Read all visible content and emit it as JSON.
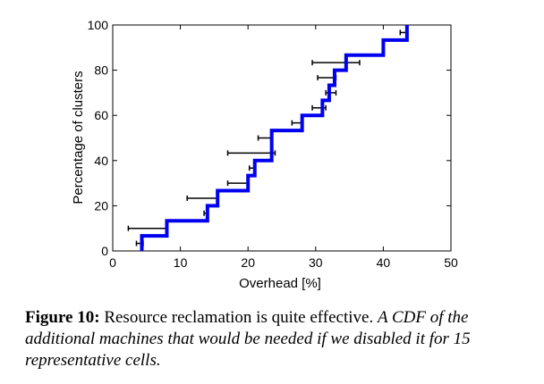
{
  "chart_data": {
    "type": "line",
    "subtype": "step-cdf-with-error-bars",
    "title": "",
    "xlabel": "Overhead [%]",
    "ylabel": "Percentage of clusters",
    "xlim": [
      0,
      50
    ],
    "ylim": [
      0,
      100
    ],
    "xticks": [
      0,
      10,
      20,
      30,
      40,
      50
    ],
    "yticks": [
      0,
      20,
      40,
      60,
      80,
      100
    ],
    "grid": false,
    "series": [
      {
        "name": "CDF",
        "color": "#0000ee",
        "steps_x": [
          4.3,
          8.0,
          14.0,
          15.5,
          20.0,
          21.0,
          23.5,
          28.0,
          31.0,
          32.0,
          32.8,
          34.5,
          40.0,
          43.5
        ],
        "steps_y": [
          6.67,
          13.33,
          20.0,
          26.67,
          33.33,
          40.0,
          53.33,
          60.0,
          66.67,
          73.33,
          80.0,
          86.67,
          93.33,
          100.0
        ]
      }
    ],
    "error_bars": [
      {
        "y": 3.33,
        "low": 3.5,
        "high": 4.5
      },
      {
        "y": 10.0,
        "low": 2.3,
        "high": 8.0
      },
      {
        "y": 16.67,
        "low": 13.5,
        "high": 14.0
      },
      {
        "y": 23.33,
        "low": 11.0,
        "high": 15.5
      },
      {
        "y": 30.0,
        "low": 17.0,
        "high": 20.0
      },
      {
        "y": 36.67,
        "low": 20.2,
        "high": 21.0
      },
      {
        "y": 43.33,
        "low": 17.0,
        "high": 24.0
      },
      {
        "y": 50.0,
        "low": 21.5,
        "high": 23.5
      },
      {
        "y": 56.67,
        "low": 26.5,
        "high": 28.0
      },
      {
        "y": 63.33,
        "low": 29.5,
        "high": 31.5
      },
      {
        "y": 70.0,
        "low": 31.5,
        "high": 33.0
      },
      {
        "y": 76.67,
        "low": 30.3,
        "high": 33.0
      },
      {
        "y": 83.33,
        "low": 29.5,
        "high": 36.5
      },
      {
        "y": 96.67,
        "low": 42.5,
        "high": 43.5
      }
    ]
  },
  "caption": {
    "label": "Figure 10:",
    "main": "Resource reclamation is quite effective.",
    "desc": "A CDF of the additional machines that would be needed if we disabled it for 15 representative cells."
  },
  "colors": {
    "series": "#0000ee",
    "error_bar": "#000000"
  }
}
